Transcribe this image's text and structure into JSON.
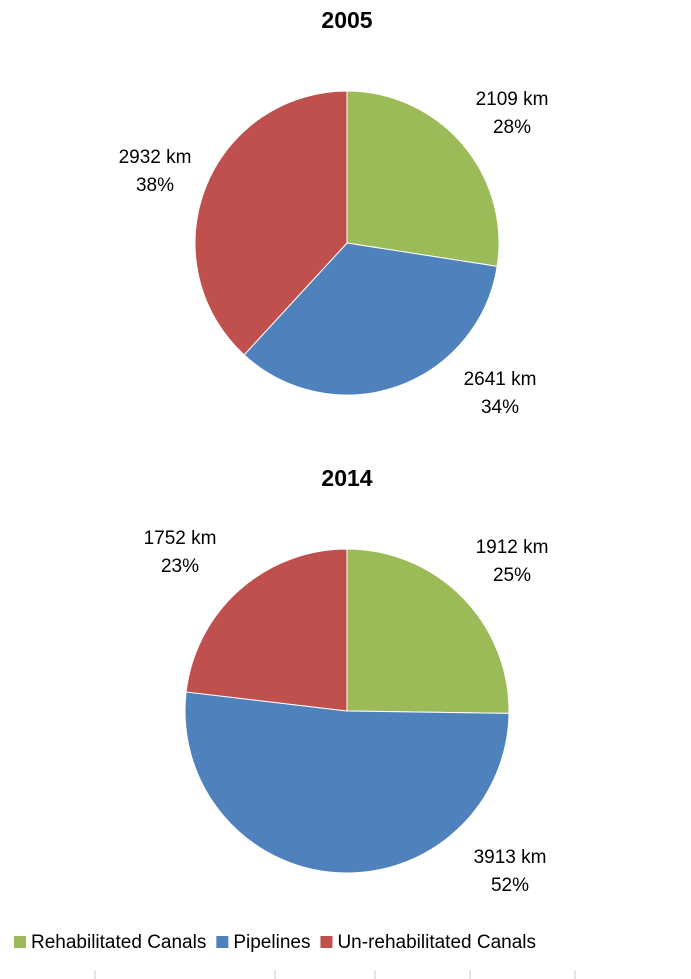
{
  "chart_data": [
    {
      "type": "pie",
      "title": "2005",
      "categories": [
        "Rehabilitated Canals",
        "Pipelines",
        "Un-rehabilitated Canals"
      ],
      "values": [
        2109,
        2641,
        2932
      ],
      "value_labels": [
        "2109 km",
        "2641 km",
        "2932 km"
      ],
      "percent_labels": [
        "28%",
        "34%",
        "38%"
      ],
      "colors": [
        "#9bbb59",
        "#4f81bd",
        "#c0504d"
      ]
    },
    {
      "type": "pie",
      "title": "2014",
      "categories": [
        "Rehabilitated Canals",
        "Pipelines",
        "Un-rehabilitated Canals"
      ],
      "values": [
        1912,
        3913,
        1752
      ],
      "value_labels": [
        "1912 km",
        "3913 km",
        "1752 km"
      ],
      "percent_labels": [
        "25%",
        "52%",
        "23%"
      ],
      "colors": [
        "#9bbb59",
        "#4f81bd",
        "#c0504d"
      ]
    }
  ]
}
